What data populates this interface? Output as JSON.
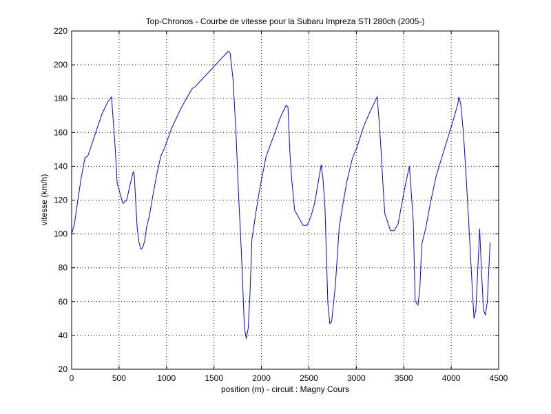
{
  "chart_data": {
    "type": "line",
    "title": "Top-Chronos - Courbe de vitesse pour la Subaru Impreza STI 280ch (2005-)",
    "xlabel": "position (m) - circuit : Magny Cours",
    "ylabel": "vitesse (km/h)",
    "xlim": [
      0,
      4500
    ],
    "ylim": [
      20,
      220
    ],
    "xticks": [
      0,
      500,
      1000,
      1500,
      2000,
      2500,
      3000,
      3500,
      4000,
      4500
    ],
    "yticks": [
      20,
      40,
      60,
      80,
      100,
      120,
      140,
      160,
      180,
      200,
      220
    ],
    "grid": true,
    "line_color": "#0000ff",
    "series": [
      {
        "x": [
          0,
          30,
          60,
          100,
          140,
          170,
          200,
          260,
          320,
          380,
          420,
          440,
          460,
          480,
          500,
          540,
          580,
          620,
          650,
          660,
          690,
          710,
          730,
          750,
          770,
          790,
          820,
          860,
          900,
          940,
          980,
          1050,
          1150,
          1270,
          1300,
          1400,
          1500,
          1600,
          1650,
          1670,
          1700,
          1730,
          1760,
          1790,
          1820,
          1840,
          1860,
          1880,
          1900,
          1940,
          1980,
          2050,
          2150,
          2200,
          2260,
          2280,
          2300,
          2320,
          2350,
          2400,
          2440,
          2480,
          2520,
          2560,
          2600,
          2630,
          2650,
          2670,
          2700,
          2720,
          2740,
          2780,
          2820,
          2860,
          2900,
          2960,
          3000,
          3080,
          3150,
          3220,
          3240,
          3260,
          3280,
          3300,
          3330,
          3360,
          3400,
          3440,
          3480,
          3510,
          3540,
          3560,
          3580,
          3600,
          3620,
          3650,
          3670,
          3690,
          3730,
          3780,
          3840,
          3900,
          3960,
          4020,
          4070,
          4080,
          4100,
          4130,
          4160,
          4190,
          4220,
          4240,
          4260,
          4280,
          4300,
          4320,
          4340,
          4360,
          4380,
          4410
        ],
        "values": [
          100,
          106,
          118,
          133,
          145,
          146,
          151,
          161,
          171,
          178,
          181,
          166,
          150,
          130,
          126,
          118,
          120,
          130,
          137,
          135,
          104,
          95,
          91,
          92,
          96,
          104,
          111,
          124,
          136,
          146,
          151,
          162,
          174,
          186,
          187,
          193,
          199,
          205,
          208,
          207,
          192,
          162,
          122,
          88,
          45,
          38,
          44,
          65,
          97,
          112,
          126,
          146,
          161,
          169,
          176,
          175,
          148,
          132,
          114,
          109,
          105,
          105,
          110,
          118,
          131,
          141,
          132,
          115,
          59,
          47,
          48,
          70,
          104,
          118,
          131,
          145,
          150,
          164,
          173,
          181,
          167,
          150,
          130,
          112,
          107,
          102,
          102,
          106,
          118,
          127,
          135,
          140,
          124,
          108,
          60,
          58,
          68,
          94,
          103,
          118,
          134,
          145,
          156,
          167,
          177,
          181,
          177,
          159,
          131,
          101,
          70,
          50,
          55,
          79,
          103,
          77,
          55,
          52,
          60,
          95
        ]
      }
    ]
  }
}
